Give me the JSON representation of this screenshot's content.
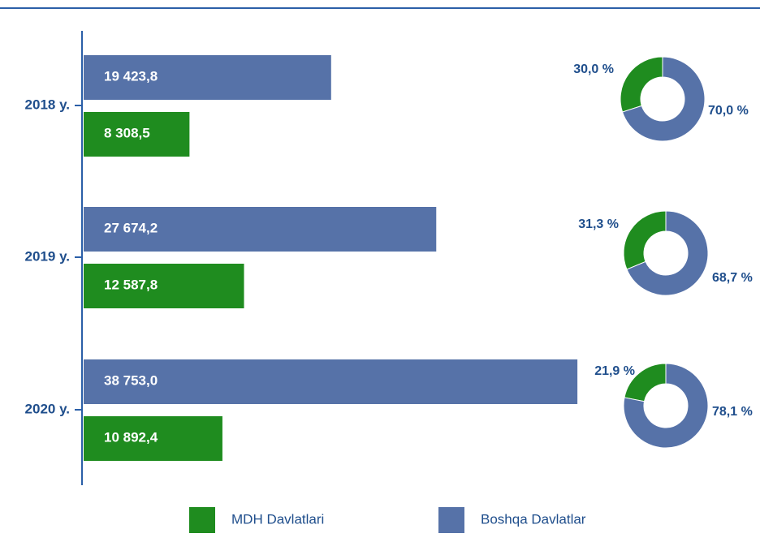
{
  "chart_data": [
    {
      "type": "bar",
      "orientation": "horizontal",
      "categories": [
        "2018 y.",
        "2019 y.",
        "2020 y."
      ],
      "series": [
        {
          "name": "MDH Davlatlari",
          "color": "#1f8c1f",
          "values": [
            8308.5,
            12587.8,
            10892.4
          ],
          "value_labels": [
            "8 308,5",
            "12 587,8",
            "10 892,4"
          ]
        },
        {
          "name": "Boshqa Davlatlar",
          "color": "#5672a8",
          "values": [
            19423.8,
            27674.2,
            38753.0
          ],
          "value_labels": [
            "19 423,8",
            "27 674,2",
            "38 753,0"
          ]
        }
      ],
      "xlim": [
        0,
        52000
      ]
    },
    {
      "type": "pie",
      "donut": true,
      "values": [
        30.0,
        70.0
      ],
      "value_labels": [
        "30,0 %",
        "70,0 %"
      ],
      "colors": [
        "#1f8c1f",
        "#5672a8"
      ]
    },
    {
      "type": "pie",
      "donut": true,
      "values": [
        31.3,
        68.7
      ],
      "value_labels": [
        "31,3 %",
        "68,7 %"
      ],
      "colors": [
        "#1f8c1f",
        "#5672a8"
      ]
    },
    {
      "type": "pie",
      "donut": true,
      "values": [
        21.9,
        78.1
      ],
      "value_labels": [
        "21,9 %",
        "78,1 %"
      ],
      "colors": [
        "#1f8c1f",
        "#5672a8"
      ]
    }
  ]
}
